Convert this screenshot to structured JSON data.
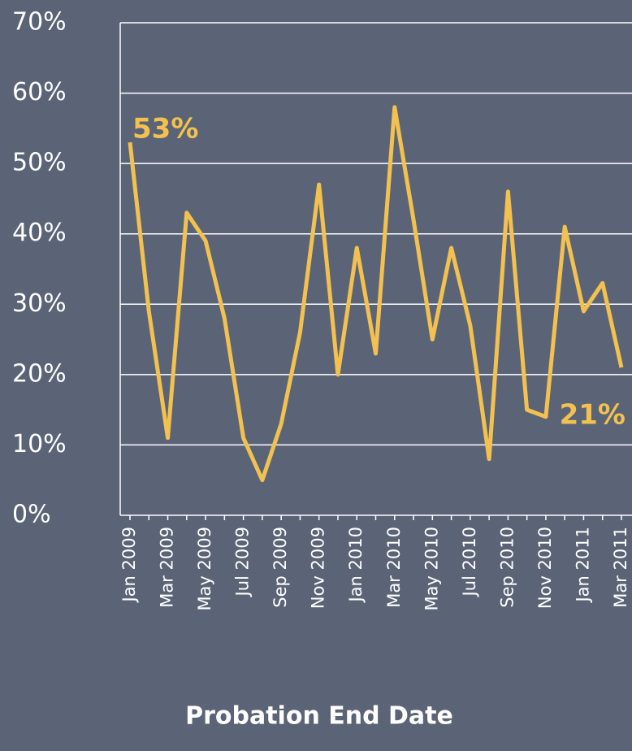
{
  "chart_data": {
    "type": "line",
    "x_label": "Probation End Date",
    "categories": [
      "Jan 2009",
      null,
      "Mar 2009",
      null,
      "May 2009",
      null,
      "Jul 2009",
      null,
      "Sep 2009",
      null,
      "Nov 2009",
      null,
      "Jan 2010",
      null,
      "Mar 2010",
      null,
      "May 2010",
      null,
      "Jul 2010",
      null,
      "Sep 2010",
      null,
      "Nov 2010",
      null,
      "Jan 2011",
      null,
      "Mar 2011"
    ],
    "series": [
      {
        "name": null,
        "color": "#f3c14f",
        "values": [
          53,
          29,
          11,
          43,
          39,
          28,
          11,
          5,
          13,
          26,
          47,
          20,
          38,
          23,
          58,
          42,
          25,
          38,
          27,
          8,
          46,
          15,
          14,
          41,
          29,
          33,
          21
        ],
        "value_labels": [
          "53%",
          null,
          null,
          null,
          null,
          null,
          null,
          null,
          null,
          null,
          null,
          null,
          null,
          null,
          null,
          null,
          null,
          null,
          null,
          null,
          null,
          null,
          null,
          null,
          null,
          null,
          "21%"
        ]
      }
    ],
    "ylim": [
      0,
      70
    ],
    "yticks": [
      {
        "value": 0,
        "label": "0%"
      },
      {
        "value": 10,
        "label": "10%"
      },
      {
        "value": 20,
        "label": "20%"
      },
      {
        "value": 30,
        "label": "30%"
      },
      {
        "value": 40,
        "label": "40%"
      },
      {
        "value": 50,
        "label": "50%"
      },
      {
        "value": 60,
        "label": "60%"
      },
      {
        "value": 70,
        "label": "70%"
      }
    ],
    "grid": true
  }
}
